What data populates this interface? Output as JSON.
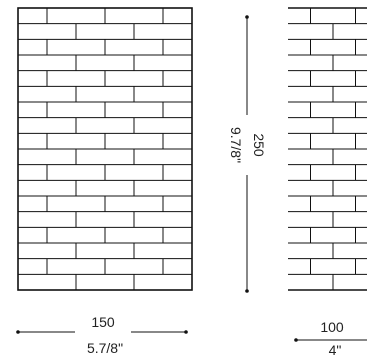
{
  "panels": [
    {
      "name": "panel-large",
      "rows": 18,
      "bricks_per_row": 3
    },
    {
      "name": "panel-small",
      "rows": 18,
      "bricks_per_row": 2
    }
  ],
  "dimensions": {
    "large_width_mm": "150",
    "large_width_in": "5.7/8\"",
    "height_mm": "250",
    "height_in": "9.7/8\"",
    "small_width_mm": "100",
    "small_width_in": "4\""
  },
  "colors": {
    "line": "#111111",
    "background": "#ffffff"
  }
}
